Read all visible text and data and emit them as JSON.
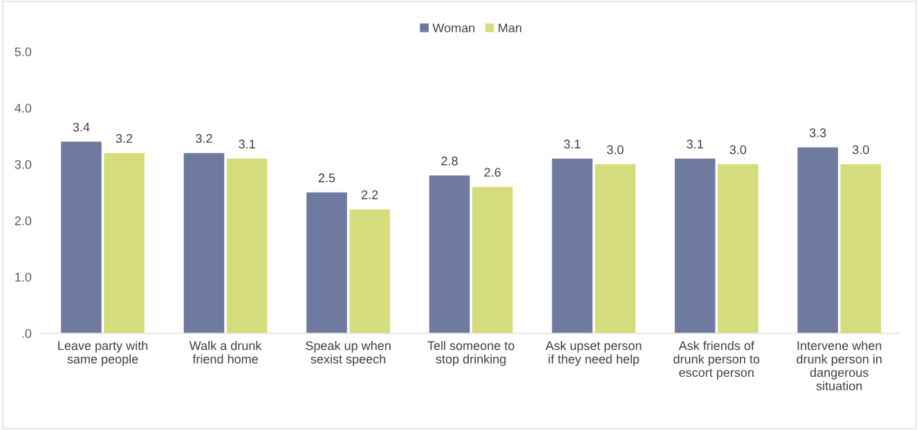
{
  "chart_data": {
    "type": "bar",
    "categories": [
      "Leave party with same people",
      "Walk a drunk friend home",
      "Speak up when sexist speech",
      "Tell someone to stop drinking",
      "Ask upset person if they need help",
      "Ask friends of drunk person to escort person",
      "Intervene when drunk person in dangerous situation"
    ],
    "series": [
      {
        "name": "Woman",
        "color": "#6f7aa1",
        "values": [
          3.4,
          3.2,
          2.5,
          2.8,
          3.1,
          3.1,
          3.3
        ],
        "value_labels": [
          "3.4",
          "3.2",
          "2.5",
          "2.8",
          "3.1",
          "3.1",
          "3.3"
        ]
      },
      {
        "name": "Man",
        "color": "#d4dc7b",
        "values": [
          3.2,
          3.1,
          2.2,
          2.6,
          3.0,
          3.0,
          3.0
        ],
        "value_labels": [
          "3.2",
          "3.1",
          "2.2",
          "2.6",
          "3.0",
          "3.0",
          "3.0"
        ]
      }
    ],
    "ylim": [
      0,
      5
    ],
    "yticks": [
      {
        "value": 0,
        "label": ".0"
      },
      {
        "value": 1,
        "label": "1.0"
      },
      {
        "value": 2,
        "label": "2.0"
      },
      {
        "value": 3,
        "label": "3.0"
      },
      {
        "value": 4,
        "label": "4.0"
      },
      {
        "value": 5,
        "label": "5.0"
      }
    ],
    "grid": false,
    "legend": "top"
  }
}
